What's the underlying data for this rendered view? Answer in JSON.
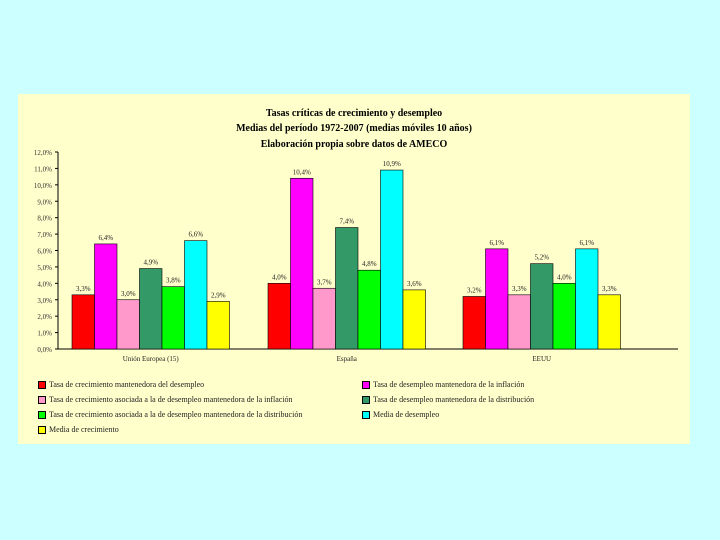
{
  "chart_data": {
    "type": "bar",
    "title": "Tasas críticas de crecimiento y desempleo",
    "subtitle": "Medias del período 1972-2007 (medias móviles 10 años)",
    "subtitle2": "Elaboración propia sobre datos de AMECO",
    "ylim": [
      0,
      12
    ],
    "yticks": [
      "0,0%",
      "1,0%",
      "2,0%",
      "3,0%",
      "4,0%",
      "5,0%",
      "6,0%",
      "7,0%",
      "8,0%",
      "9,0%",
      "10,0%",
      "11,0%",
      "12,0%"
    ],
    "categories": [
      "Unión Europea (15)",
      "España",
      "EEUU"
    ],
    "series": [
      {
        "name": "Tasa de crecimiento mantenedora del desempleo",
        "color": "#ff0000",
        "values": [
          3.3,
          4.0,
          3.2
        ],
        "labels": [
          "3,3%",
          "4,0%",
          "3,2%"
        ]
      },
      {
        "name": "Tasa de desempleo mantenedora de la inflación",
        "color": "#ff00ff",
        "values": [
          6.4,
          10.4,
          6.1
        ],
        "labels": [
          "6,4%",
          "10,4%",
          "6,1%"
        ]
      },
      {
        "name": "Tasa de crecimiento asociada a la de desempleo mantenedora de la inflación",
        "color": "#ff99cc",
        "values": [
          3.0,
          3.7,
          3.3
        ],
        "labels": [
          "3,0%",
          "3,7%",
          "3,3%"
        ]
      },
      {
        "name": "Tasa de desempleo mantenedora de la distribución",
        "color": "#339966",
        "values": [
          4.9,
          7.4,
          5.2
        ],
        "labels": [
          "4,9%",
          "7,4%",
          "5,2%"
        ]
      },
      {
        "name": "Tasa de crecimiento asociada a la de desempleo mantenedora de la distribución",
        "color": "#00ff00",
        "values": [
          3.8,
          4.8,
          4.0
        ],
        "labels": [
          "3,8%",
          "4,8%",
          "4,0%"
        ]
      },
      {
        "name": "Media de desempleo",
        "color": "#00ffff",
        "values": [
          6.6,
          10.9,
          6.1
        ],
        "labels": [
          "6,6%",
          "10,9%",
          "6,1%"
        ]
      },
      {
        "name": "Media de crecimiento",
        "color": "#ffff00",
        "values": [
          2.9,
          3.6,
          3.3
        ],
        "labels": [
          "2,9%",
          "3,6%",
          "3,3%"
        ]
      }
    ]
  }
}
